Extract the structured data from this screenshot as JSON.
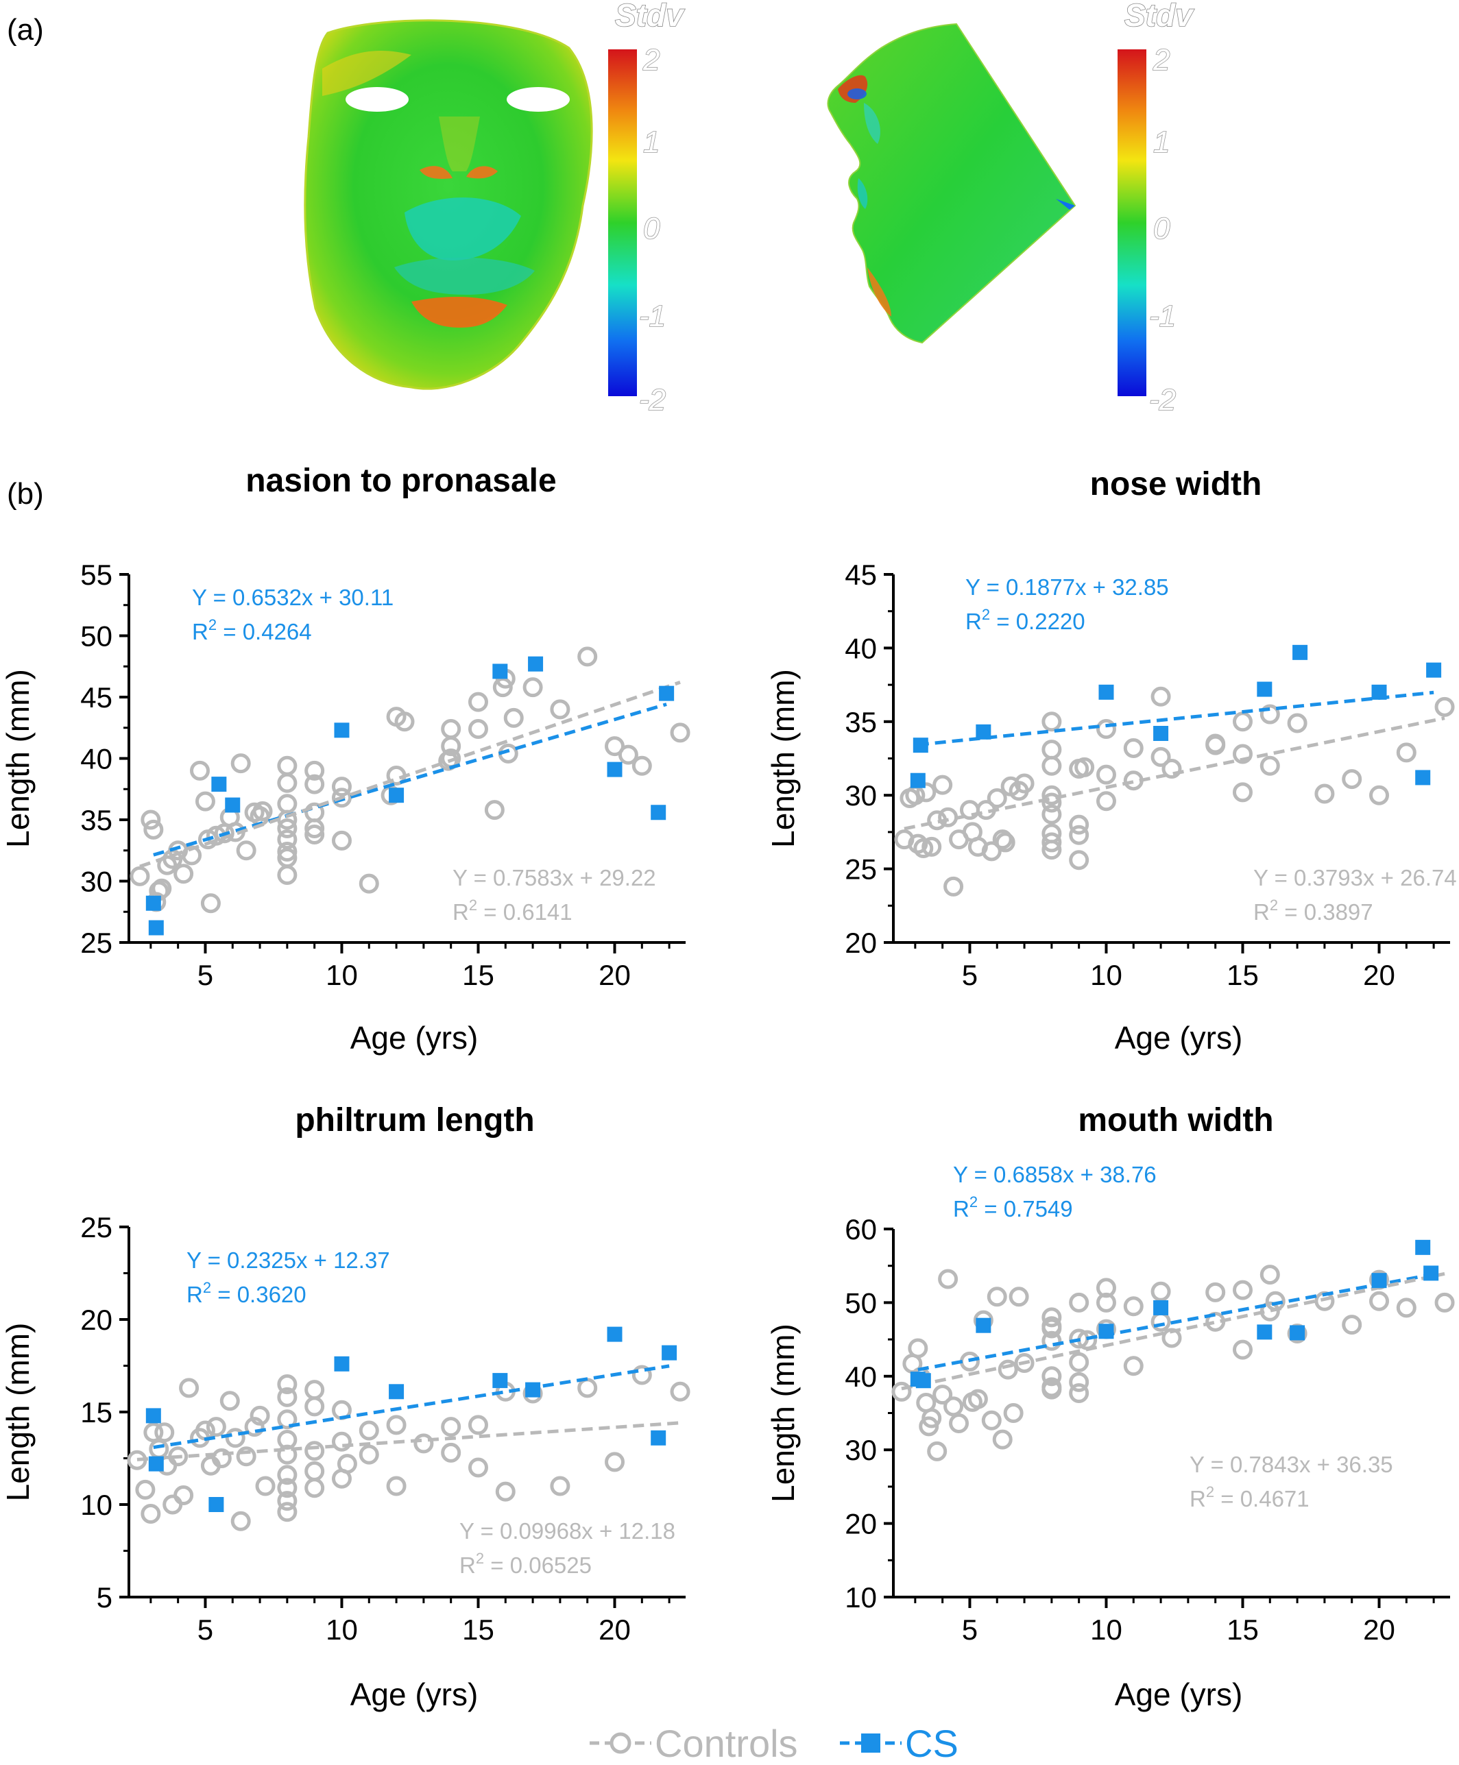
{
  "panel_labels": {
    "a": "(a)",
    "b": "(b)"
  },
  "heatmap": {
    "colorbar_title": "Stdv",
    "colorbar_ticks": [
      "2",
      "1",
      "0",
      "-1",
      "-2"
    ],
    "colormap": [
      "#d4141b",
      "#f08a10",
      "#f3e511",
      "#2fd12a",
      "#16e0c7",
      "#1070f0",
      "#0a0ad8"
    ]
  },
  "colors": {
    "cs": "#1a90e8",
    "controls": "#b9b9b9"
  },
  "legend": {
    "controls_label": "Controls",
    "cs_label": "CS"
  },
  "chart_data": [
    {
      "type": "scatter",
      "title": "nasion to pronasale",
      "xlabel": "Age (yrs)",
      "ylabel": "Length (mm)",
      "xlim": [
        2.2,
        22.6
      ],
      "ylim": [
        25,
        55
      ],
      "xticks": [
        5,
        10,
        15,
        20
      ],
      "yticks": [
        25,
        30,
        35,
        40,
        45,
        50,
        55
      ],
      "series": [
        {
          "name": "Controls",
          "marker": "open-circle",
          "x": [
            2.6,
            3,
            3.1,
            3.2,
            3.4,
            3.6,
            3.8,
            4,
            4.2,
            4.5,
            4.8,
            5,
            5.1,
            5.2,
            5.4,
            5.7,
            5.9,
            6.1,
            6.3,
            6.5,
            6.8,
            7,
            7.1,
            8,
            8,
            8,
            8,
            8,
            8,
            8,
            8,
            8,
            9,
            9,
            9,
            9,
            9,
            10,
            10,
            10,
            11,
            12,
            12,
            12.3,
            14,
            14,
            14,
            15,
            15,
            15.9,
            16,
            16.1,
            17,
            18,
            19,
            20,
            21,
            22.4,
            3.3,
            11.8,
            13.9,
            15.6,
            16.3,
            20.5
          ],
          "y": [
            30.4,
            35,
            34.2,
            28.3,
            29.4,
            31.3,
            31.8,
            32.5,
            30.6,
            32.1,
            39,
            36.5,
            33.4,
            28.2,
            33.7,
            33.9,
            35.2,
            34,
            39.6,
            32.5,
            35.6,
            35.3,
            35.7,
            39.4,
            38,
            36.3,
            35,
            34.3,
            33.4,
            32.4,
            31.9,
            30.5,
            39,
            37.9,
            35.6,
            34.3,
            33.8,
            37.7,
            36.8,
            33.3,
            29.8,
            43.4,
            38.6,
            43,
            42.4,
            41,
            40,
            44.6,
            42.4,
            45.8,
            46.5,
            40.4,
            45.8,
            44,
            48.3,
            41,
            39.4,
            42.1,
            29.2,
            37,
            39.8,
            35.8,
            43.3,
            40.3
          ]
        },
        {
          "name": "CS",
          "marker": "filled-square",
          "x": [
            3.1,
            3.2,
            5.5,
            6,
            10,
            12,
            15.8,
            17.1,
            20,
            21.6,
            21.9
          ],
          "y": [
            28.2,
            26.2,
            37.9,
            36.2,
            42.3,
            37,
            47.1,
            47.7,
            39.1,
            35.6,
            45.3
          ]
        }
      ],
      "fits": [
        {
          "series": "CS",
          "slope": 0.6532,
          "intercept": 30.11,
          "equation": "Y = 0.6532x + 30.11",
          "r2_text": "= 0.4264"
        },
        {
          "series": "Controls",
          "slope": 0.7583,
          "intercept": 29.22,
          "equation": "Y = 0.7583x + 29.22",
          "r2_text": "= 0.6141"
        }
      ]
    },
    {
      "type": "scatter",
      "title": "nose width",
      "xlabel": "Age (yrs)",
      "ylabel": "Length (mm)",
      "xlim": [
        2.2,
        22.6
      ],
      "ylim": [
        20,
        45
      ],
      "xticks": [
        5,
        10,
        15,
        20
      ],
      "yticks": [
        20,
        25,
        30,
        35,
        40,
        45
      ],
      "series": [
        {
          "name": "Controls",
          "marker": "open-circle",
          "x": [
            2.6,
            2.8,
            3,
            3.1,
            3.3,
            3.6,
            3.8,
            4,
            4.2,
            4.4,
            4.6,
            5,
            5.1,
            5.3,
            5.6,
            5.8,
            6,
            6.2,
            6.5,
            6.8,
            7,
            8,
            8,
            8,
            8,
            8,
            8,
            8,
            8,
            8,
            9,
            9,
            9,
            9,
            10,
            10,
            10,
            11,
            11,
            12,
            12,
            12.4,
            14,
            14,
            15,
            15,
            15,
            16,
            16,
            17,
            18,
            19,
            20,
            21,
            22.4,
            3.4,
            6.3,
            9.2
          ],
          "y": [
            27,
            29.8,
            30,
            26.7,
            26.4,
            26.5,
            28.3,
            30.7,
            28.5,
            23.8,
            27,
            29,
            27.5,
            26.5,
            29,
            26.2,
            29.8,
            27,
            30.6,
            30.3,
            30.8,
            35,
            33.1,
            32,
            30,
            29.5,
            28.7,
            27.4,
            26.8,
            26.3,
            31.8,
            28,
            27.3,
            25.6,
            34.5,
            31.4,
            29.6,
            33.2,
            31,
            36.7,
            32.6,
            31.8,
            33.5,
            33.4,
            32.8,
            30.2,
            35,
            35.5,
            32,
            34.9,
            30.1,
            31.1,
            30,
            32.9,
            36,
            30.2,
            26.8,
            31.9
          ]
        },
        {
          "name": "CS",
          "marker": "filled-square",
          "x": [
            3.1,
            3.2,
            5.5,
            10,
            12,
            15.8,
            17.1,
            20,
            21.6,
            22
          ],
          "y": [
            31,
            33.4,
            34.3,
            37,
            34.2,
            37.2,
            39.7,
            37,
            31.2,
            38.5
          ]
        }
      ],
      "fits": [
        {
          "series": "CS",
          "slope": 0.1877,
          "intercept": 32.85,
          "equation": "Y = 0.1877x + 32.85",
          "r2_text": "= 0.2220"
        },
        {
          "series": "Controls",
          "slope": 0.3793,
          "intercept": 26.74,
          "equation": "Y = 0.3793x + 26.74",
          "r2_text": "= 0.3897"
        }
      ]
    },
    {
      "type": "scatter",
      "title": "philtrum length",
      "xlabel": "Age (yrs)",
      "ylabel": "Length (mm)",
      "xlim": [
        2.2,
        22.6
      ],
      "ylim": [
        5,
        25
      ],
      "xticks": [
        5,
        10,
        15,
        20
      ],
      "yticks": [
        5,
        10,
        15,
        20,
        25
      ],
      "series": [
        {
          "name": "Controls",
          "marker": "open-circle",
          "x": [
            2.5,
            2.8,
            3,
            3.1,
            3.3,
            3.5,
            3.8,
            4,
            4.2,
            4.4,
            4.8,
            5,
            5.2,
            5.4,
            5.6,
            5.9,
            6.1,
            6.3,
            6.8,
            7,
            7.2,
            8,
            8,
            8,
            8,
            8,
            8,
            8,
            8,
            8,
            9,
            9,
            9,
            9,
            9,
            10,
            10,
            10,
            11,
            11,
            12,
            12,
            13,
            14,
            14,
            15,
            15,
            16,
            16,
            17,
            18,
            19,
            20,
            21,
            22.4,
            3.6,
            6.5,
            10.2
          ],
          "y": [
            12.4,
            10.8,
            9.5,
            13.9,
            13,
            13.9,
            10,
            12.6,
            10.5,
            16.3,
            13.6,
            14,
            12.1,
            14.2,
            12.5,
            15.6,
            13.6,
            9.1,
            14.2,
            14.8,
            11,
            16.5,
            15.8,
            14.6,
            13.5,
            12.7,
            11.6,
            10.9,
            10.2,
            9.6,
            16.2,
            15.3,
            12.9,
            11.8,
            10.9,
            15.1,
            13.4,
            11.4,
            12.7,
            14,
            14.3,
            11,
            13.3,
            12.8,
            14.2,
            14.3,
            12,
            16.1,
            10.7,
            16,
            11,
            16.3,
            12.3,
            17,
            16.1,
            12.1,
            12.6,
            12.2
          ]
        },
        {
          "name": "CS",
          "marker": "filled-square",
          "x": [
            3.1,
            3.2,
            5.4,
            10,
            12,
            15.8,
            17,
            20,
            21.6,
            22
          ],
          "y": [
            14.8,
            12.2,
            10,
            17.6,
            16.1,
            16.7,
            16.2,
            19.2,
            13.6,
            18.2
          ]
        }
      ],
      "fits": [
        {
          "series": "CS",
          "slope": 0.2325,
          "intercept": 12.37,
          "equation": "Y = 0.2325x + 12.37",
          "r2_text": "= 0.3620"
        },
        {
          "series": "Controls",
          "slope": 0.09968,
          "intercept": 12.18,
          "equation": "Y = 0.09968x + 12.18",
          "r2_text": "= 0.06525"
        }
      ]
    },
    {
      "type": "scatter",
      "title": "mouth width",
      "xlabel": "Age (yrs)",
      "ylabel": "Length (mm)",
      "xlim": [
        2.2,
        22.6
      ],
      "ylim": [
        10,
        60
      ],
      "xticks": [
        5,
        10,
        15,
        20
      ],
      "yticks": [
        10,
        20,
        30,
        40,
        50,
        60
      ],
      "series": [
        {
          "name": "Controls",
          "marker": "open-circle",
          "x": [
            2.5,
            2.9,
            3.1,
            3.2,
            3.4,
            3.6,
            3.8,
            4,
            4.2,
            4.4,
            4.6,
            5,
            5.1,
            5.3,
            5.5,
            5.8,
            6,
            6.2,
            6.4,
            6.8,
            7,
            8,
            8,
            8,
            8,
            8,
            8,
            8,
            9,
            9,
            9,
            9,
            9,
            10,
            10,
            10,
            11,
            11,
            12,
            12,
            12.4,
            14,
            14,
            15,
            15,
            16,
            16,
            17,
            18,
            19,
            20,
            20,
            21,
            22.4,
            3.5,
            6.6,
            9.3,
            16.2
          ],
          "y": [
            37.9,
            41.7,
            43.8,
            39.9,
            36.4,
            34.3,
            29.8,
            37.5,
            53.2,
            35.9,
            33.6,
            42,
            36.5,
            36.9,
            47.6,
            34,
            50.8,
            31.4,
            40.9,
            50.8,
            41.8,
            48,
            46.5,
            44.8,
            40,
            38.5,
            38.2,
            46.8,
            50,
            45.1,
            41.9,
            39.2,
            37.7,
            52,
            50,
            46.4,
            49.5,
            41.4,
            51.5,
            47.4,
            45.2,
            51.4,
            47.4,
            51.7,
            43.6,
            53.8,
            48.8,
            45.8,
            50.2,
            47,
            53.1,
            50.2,
            49.3,
            50,
            33.2,
            35,
            44.9,
            50.2
          ]
        },
        {
          "name": "CS",
          "marker": "filled-square",
          "x": [
            3.1,
            3.3,
            5.5,
            10,
            12,
            15.8,
            17,
            20,
            21.6,
            21.9
          ],
          "y": [
            39.6,
            39.4,
            46.9,
            46.1,
            49.3,
            46,
            45.9,
            53,
            57.5,
            54
          ]
        }
      ],
      "fits": [
        {
          "series": "CS",
          "slope": 0.6858,
          "intercept": 38.76,
          "equation": "Y = 0.6858x + 38.76",
          "r2_text": "= 0.7549"
        },
        {
          "series": "Controls",
          "slope": 0.7843,
          "intercept": 36.35,
          "equation": "Y = 0.7843x + 36.35",
          "r2_text": "= 0.4671"
        }
      ]
    }
  ]
}
